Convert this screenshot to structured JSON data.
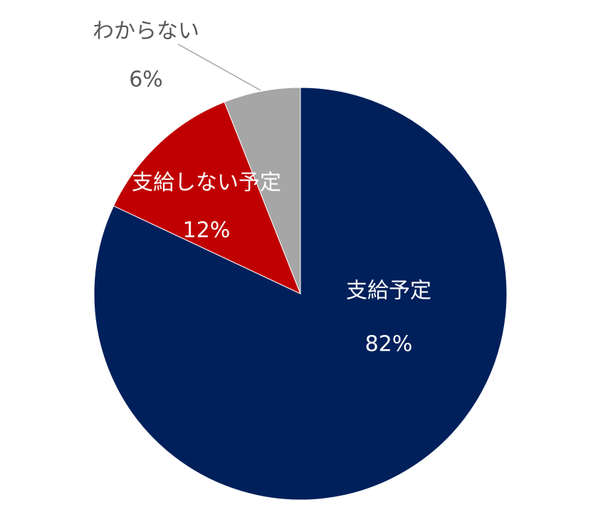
{
  "chart_data": {
    "type": "pie",
    "categories": [
      "支給予定",
      "支給しない予定",
      "わからない"
    ],
    "values": [
      82,
      12,
      6
    ],
    "value_labels": [
      "82%",
      "12%",
      "6%"
    ],
    "colors": [
      "#00205b",
      "#c00000",
      "#a6a6a6"
    ]
  }
}
